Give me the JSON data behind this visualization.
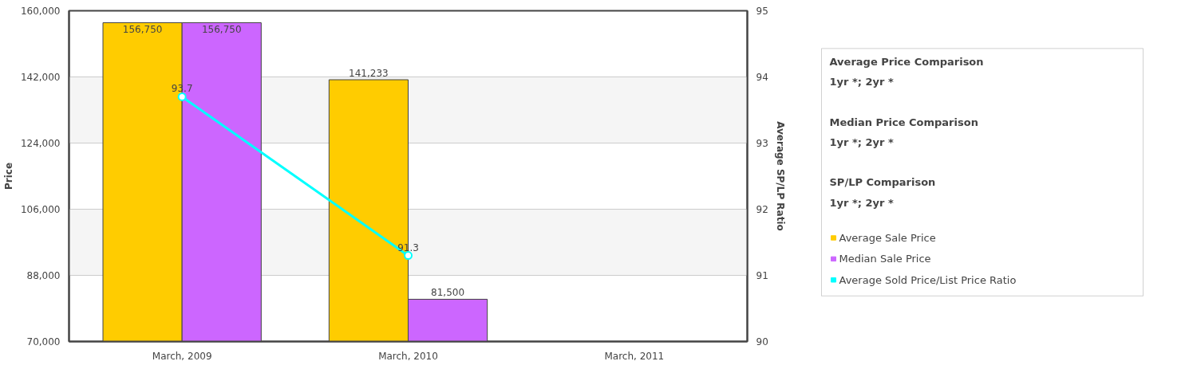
{
  "chart_data": {
    "type": "bar",
    "categories": [
      "March, 2009",
      "March, 2010",
      "March, 2011"
    ],
    "ylabel": "Price",
    "y2label": "Average SP/LP Ratio",
    "ylim": [
      70000,
      160000
    ],
    "yticks": [
      {
        "value": 70000,
        "label": "70,000"
      },
      {
        "value": 88000,
        "label": "88,000"
      },
      {
        "value": 106000,
        "label": "106,000"
      },
      {
        "value": 124000,
        "label": "124,000"
      },
      {
        "value": 142000,
        "label": "142,000"
      },
      {
        "value": 160000,
        "label": "160,000"
      }
    ],
    "y2lim": [
      90,
      95
    ],
    "y2ticks": [
      90,
      91,
      92,
      93,
      94,
      95
    ],
    "series": [
      {
        "name": "Average Sale Price",
        "color": "#ffcc00",
        "values": [
          156750,
          141233,
          null
        ],
        "value_labels": [
          "156,750",
          "141,233",
          null
        ]
      },
      {
        "name": "Median Sale Price",
        "color": "#cc66ff",
        "values": [
          156750,
          81500,
          null
        ],
        "value_labels": [
          "156,750",
          "81,500",
          null
        ]
      },
      {
        "name": "Average Sold Price/List Price Ratio",
        "type": "line",
        "axis": "y2",
        "color": "#00ffff",
        "marker": "circle",
        "values": [
          93.7,
          91.3,
          null
        ],
        "value_labels": [
          "93.7",
          "91.3",
          null
        ]
      }
    ],
    "data_labels": true,
    "grid": "y",
    "legend": "right",
    "annotations": [
      "Average Price Comparison",
      "1yr *; 2yr *",
      "Median Price Comparison",
      "1yr *; 2yr *",
      "SP/LP Comparison",
      "1yr *; 2yr *"
    ]
  }
}
